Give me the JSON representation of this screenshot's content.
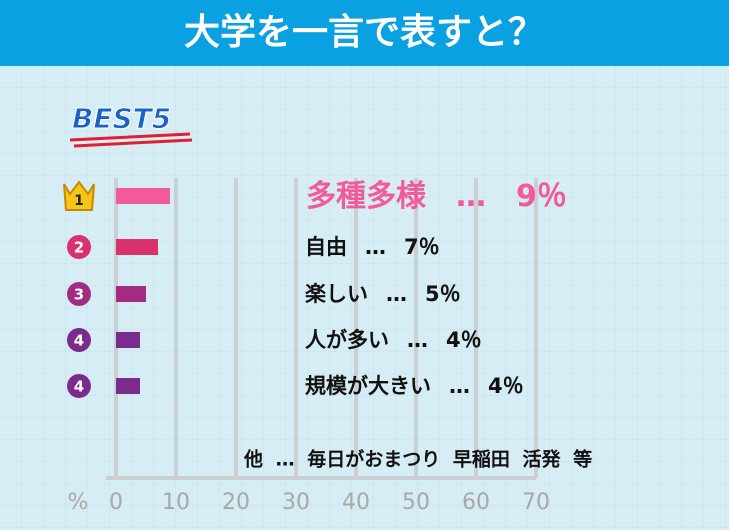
{
  "chart_data": {
    "type": "bar",
    "orientation": "horizontal",
    "title": "大学を一言で表すと？",
    "subtitle": "BEST5",
    "ranks": [
      1,
      2,
      3,
      4,
      4
    ],
    "categories": [
      "多種多様",
      "自由",
      "楽しい",
      "人が多い",
      "規模が大きい"
    ],
    "values": [
      9,
      7,
      5,
      4,
      4
    ],
    "value_labels": [
      "9％",
      "7％",
      "5％",
      "4％",
      "4％"
    ],
    "separator": "…",
    "colors": [
      "#f25a9c",
      "#d9306e",
      "#a32c82",
      "#7b2b8b",
      "#7b2b8b"
    ],
    "note": "他 … 毎日がおまつり 早稲田 活発 等",
    "xlabel": "%",
    "xlim": [
      0,
      70
    ],
    "xticks": [
      0,
      10,
      20,
      30,
      40,
      50,
      60,
      70
    ],
    "grid": true
  }
}
